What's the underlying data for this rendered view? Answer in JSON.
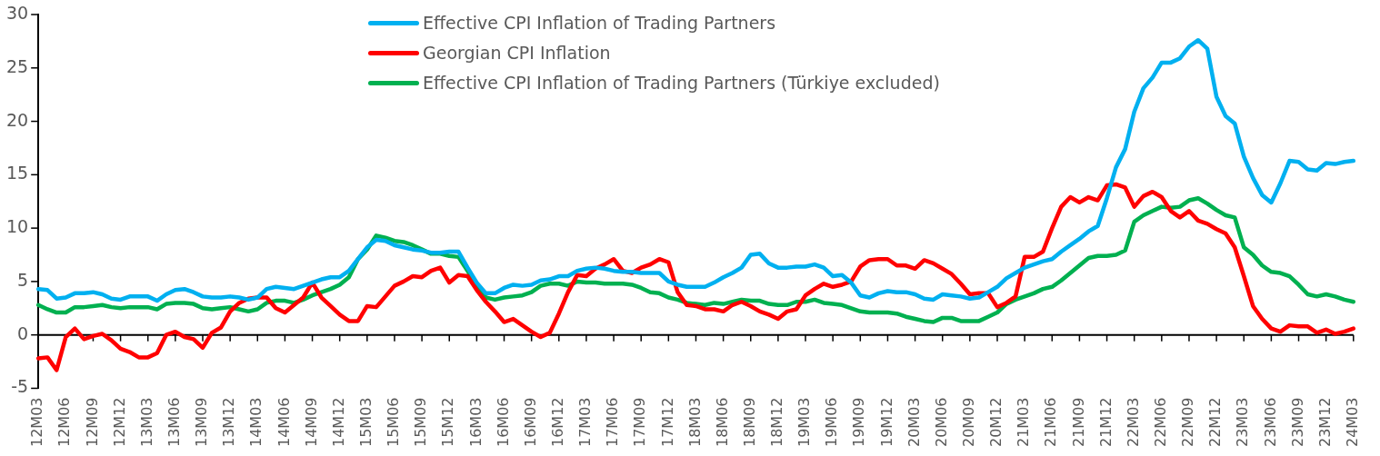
{
  "chart_data": {
    "type": "line",
    "categories": [
      "12M03",
      null,
      null,
      "12M06",
      null,
      null,
      "12M09",
      null,
      null,
      "12M12",
      null,
      null,
      "13M03",
      null,
      null,
      "13M06",
      null,
      null,
      "13M09",
      null,
      null,
      "13M12",
      null,
      null,
      "14M03",
      null,
      null,
      "14M06",
      null,
      null,
      "14M09",
      null,
      null,
      "14M12",
      null,
      null,
      "15M03",
      null,
      null,
      "15M06",
      null,
      null,
      "15M09",
      null,
      null,
      "15M12",
      null,
      null,
      "16M03",
      null,
      null,
      "16M06",
      null,
      null,
      "16M09",
      null,
      null,
      "16M12",
      null,
      null,
      "17M03",
      null,
      null,
      "17M06",
      null,
      null,
      "17M09",
      null,
      null,
      "17M12",
      null,
      null,
      "18M03",
      null,
      null,
      "18M06",
      null,
      null,
      "18M09",
      null,
      null,
      "18M12",
      null,
      null,
      "19M03",
      null,
      null,
      "19M06",
      null,
      null,
      "19M09",
      null,
      null,
      "19M12",
      null,
      null,
      "20M03",
      null,
      null,
      "20M06",
      null,
      null,
      "20M09",
      null,
      null,
      "20M12",
      null,
      null,
      "21M03",
      null,
      null,
      "21M06",
      null,
      null,
      "21M09",
      null,
      null,
      "21M12",
      null,
      null,
      "22M03",
      null,
      null,
      "22M06",
      null,
      null,
      "22M09",
      null,
      null,
      "22M12",
      null,
      null,
      "23M03",
      null,
      null,
      "23M06",
      null,
      null,
      "23M09",
      null,
      null,
      "23M12",
      null,
      null,
      "24M03"
    ],
    "series": [
      {
        "name": "Effective CPI Inflation of Trading Partners",
        "color": "#00b0f0",
        "values": [
          4.3,
          4.2,
          3.4,
          3.5,
          3.9,
          3.9,
          4.0,
          3.8,
          3.4,
          3.3,
          3.6,
          3.6,
          3.6,
          3.2,
          3.8,
          4.2,
          4.3,
          4.0,
          3.6,
          3.5,
          3.5,
          3.6,
          3.5,
          3.3,
          3.5,
          4.3,
          4.5,
          4.4,
          4.3,
          4.6,
          4.9,
          5.2,
          5.4,
          5.4,
          6.0,
          7.1,
          8.2,
          8.9,
          8.8,
          8.4,
          8.2,
          8.0,
          7.9,
          7.7,
          7.7,
          7.8,
          7.8,
          6.3,
          4.9,
          3.9,
          3.9,
          4.4,
          4.7,
          4.6,
          4.7,
          5.1,
          5.2,
          5.5,
          5.5,
          6.0,
          6.2,
          6.3,
          6.2,
          6.0,
          5.9,
          5.9,
          5.8,
          5.8,
          5.8,
          5.0,
          4.7,
          4.5,
          4.5,
          4.5,
          4.9,
          5.4,
          5.8,
          6.3,
          7.5,
          7.6,
          6.7,
          6.3,
          6.3,
          6.4,
          6.4,
          6.6,
          6.3,
          5.5,
          5.6,
          4.9,
          3.7,
          3.5,
          3.9,
          4.1,
          4.0,
          4.0,
          3.8,
          3.4,
          3.3,
          3.8,
          3.7,
          3.6,
          3.4,
          3.5,
          4.0,
          4.5,
          5.3,
          5.8,
          6.3,
          6.6,
          6.9,
          7.1,
          7.8,
          8.4,
          9.0,
          9.7,
          10.2,
          12.8,
          15.7,
          17.4,
          20.9,
          23.1,
          24.1,
          25.5,
          25.5,
          25.9,
          27.0,
          27.6,
          26.8,
          22.3,
          20.5,
          19.8,
          16.7,
          14.7,
          13.1,
          12.4,
          14.2,
          16.3,
          16.2,
          15.5,
          15.4,
          16.1,
          16.0,
          16.2,
          16.3
        ]
      },
      {
        "name": "Georgian CPI Inflation",
        "color": "#ff0000",
        "values": [
          -2.2,
          -2.1,
          -3.3,
          -0.2,
          0.6,
          -0.4,
          -0.1,
          0.1,
          -0.5,
          -1.3,
          -1.6,
          -2.1,
          -2.1,
          -1.7,
          0.0,
          0.3,
          -0.2,
          -0.4,
          -1.2,
          0.2,
          0.7,
          2.2,
          3.0,
          3.4,
          3.5,
          3.5,
          2.5,
          2.1,
          2.8,
          3.5,
          4.9,
          3.5,
          2.7,
          1.9,
          1.3,
          1.3,
          2.7,
          2.6,
          3.6,
          4.6,
          5.0,
          5.5,
          5.4,
          6.0,
          6.3,
          4.9,
          5.6,
          5.5,
          4.2,
          3.1,
          2.2,
          1.2,
          1.5,
          0.9,
          0.3,
          -0.2,
          0.2,
          2.0,
          4.0,
          5.6,
          5.5,
          6.2,
          6.6,
          7.1,
          6.0,
          5.8,
          6.3,
          6.6,
          7.1,
          6.8,
          4.0,
          2.8,
          2.7,
          2.4,
          2.4,
          2.2,
          2.8,
          3.1,
          2.7,
          2.2,
          1.9,
          1.5,
          2.2,
          2.4,
          3.7,
          4.3,
          4.8,
          4.5,
          4.7,
          5.0,
          6.4,
          7.0,
          7.1,
          7.1,
          6.5,
          6.5,
          6.2,
          7.0,
          6.7,
          6.2,
          5.7,
          4.8,
          3.8,
          3.9,
          3.9,
          2.6,
          3.0,
          3.6,
          7.3,
          7.3,
          7.8,
          10.0,
          12.0,
          12.9,
          12.4,
          12.9,
          12.6,
          14.0,
          14.1,
          13.8,
          12.0,
          13.0,
          13.4,
          12.9,
          11.6,
          11.0,
          11.6,
          10.7,
          10.4,
          9.9,
          9.5,
          8.2,
          5.5,
          2.7,
          1.5,
          0.6,
          0.3,
          0.9,
          0.8,
          0.8,
          0.2,
          0.5,
          0.1,
          0.3,
          0.6
        ]
      },
      {
        "name": "Effective CPI Inflation of Trading Partners (Türkiye excluded)",
        "color": "#00b050",
        "values": [
          2.8,
          2.4,
          2.1,
          2.1,
          2.6,
          2.6,
          2.7,
          2.8,
          2.6,
          2.5,
          2.6,
          2.6,
          2.6,
          2.4,
          2.9,
          3.0,
          3.0,
          2.9,
          2.5,
          2.4,
          2.5,
          2.6,
          2.4,
          2.2,
          2.4,
          3.0,
          3.2,
          3.2,
          3.0,
          3.3,
          3.7,
          4.0,
          4.3,
          4.7,
          5.4,
          7.1,
          8.0,
          9.3,
          9.1,
          8.8,
          8.7,
          8.4,
          8.0,
          7.6,
          7.6,
          7.4,
          7.3,
          6.0,
          4.5,
          3.5,
          3.3,
          3.5,
          3.6,
          3.7,
          4.0,
          4.6,
          4.8,
          4.8,
          4.6,
          5.0,
          4.9,
          4.9,
          4.8,
          4.8,
          4.8,
          4.7,
          4.4,
          4.0,
          3.9,
          3.5,
          3.3,
          3.0,
          2.9,
          2.8,
          3.0,
          2.9,
          3.1,
          3.3,
          3.2,
          3.2,
          2.9,
          2.8,
          2.8,
          3.1,
          3.1,
          3.3,
          3.0,
          2.9,
          2.8,
          2.5,
          2.2,
          2.1,
          2.1,
          2.1,
          2.0,
          1.7,
          1.5,
          1.3,
          1.2,
          1.6,
          1.6,
          1.3,
          1.3,
          1.3,
          1.7,
          2.1,
          2.9,
          3.3,
          3.6,
          3.9,
          4.3,
          4.5,
          5.1,
          5.8,
          6.5,
          7.2,
          7.4,
          7.4,
          7.5,
          7.9,
          10.6,
          11.2,
          11.6,
          12.0,
          11.9,
          12.0,
          12.6,
          12.8,
          12.3,
          11.7,
          11.2,
          11.0,
          8.2,
          7.5,
          6.5,
          5.9,
          5.8,
          5.5,
          4.7,
          3.8,
          3.6,
          3.8,
          3.6,
          3.3,
          3.1
        ]
      }
    ],
    "ylim": [
      -5,
      30
    ],
    "yticks": [
      -5,
      0,
      5,
      10,
      15,
      20,
      25,
      30
    ],
    "legend": "top"
  }
}
